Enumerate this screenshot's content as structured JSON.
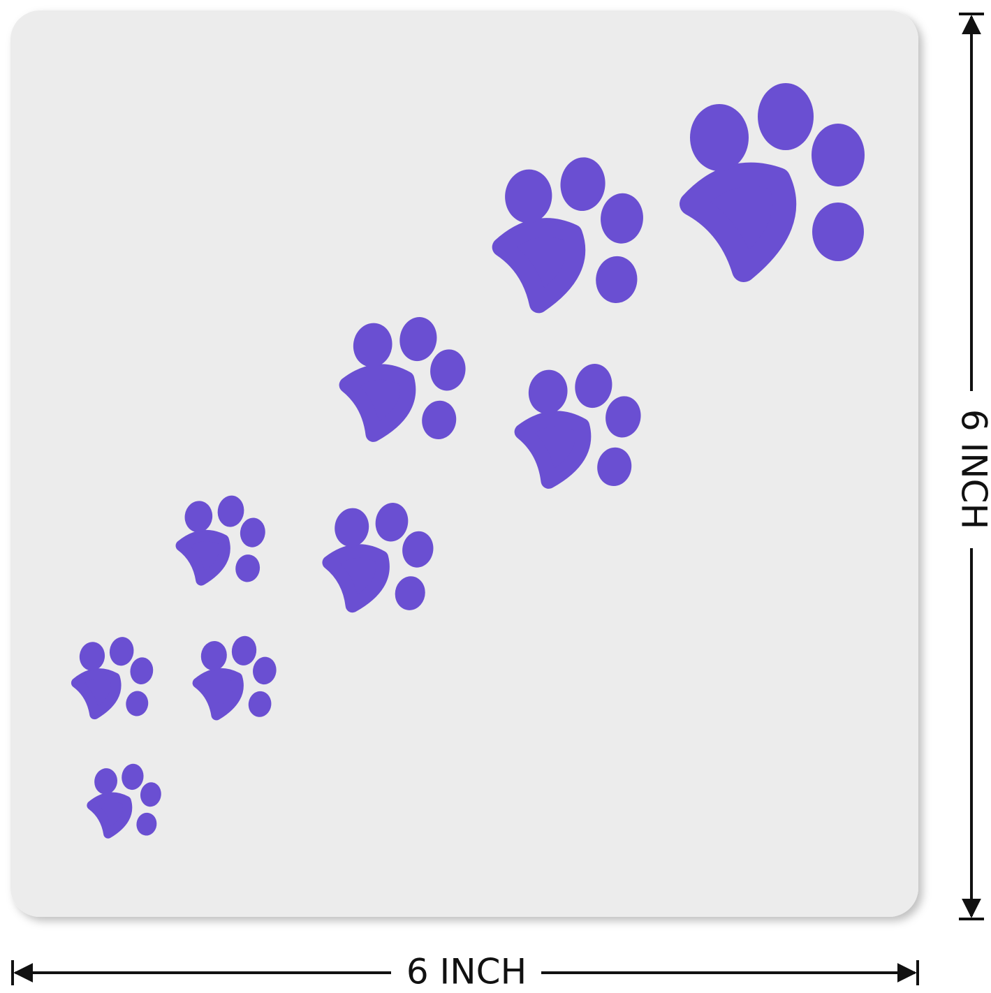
{
  "dimensions": {
    "width_label": "6 INCH",
    "height_label": "6 INCH"
  }
}
